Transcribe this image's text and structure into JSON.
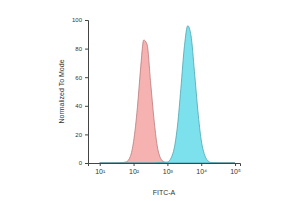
{
  "chart_data": {
    "type": "area",
    "xlabel": "FITC-A",
    "ylabel": "Normalized To Mode",
    "log": "x",
    "x": [
      10,
      20,
      40,
      60,
      80,
      100,
      130,
      160,
      200,
      250,
      320,
      400,
      500,
      630,
      800,
      1000,
      1300,
      1600,
      2000,
      2500,
      3200,
      4000,
      5000,
      6300,
      8000,
      10000,
      13000,
      16000,
      20000,
      40000,
      100000
    ],
    "series": [
      {
        "color": "#f4a3a3",
        "values": [
          0,
          0,
          0.2,
          0.7,
          4.5,
          15,
          39,
          65,
          86,
          83,
          56,
          31,
          12,
          3.3,
          0.7,
          0.1,
          0,
          0,
          0,
          0,
          0,
          0,
          0,
          0,
          0,
          0,
          0,
          0,
          0,
          0,
          0
        ]
      },
      {
        "color": "#66dcea",
        "values": [
          0,
          0,
          0,
          0,
          0,
          0,
          0,
          0,
          0,
          0,
          0,
          0,
          0.3,
          0.4,
          0.5,
          0.7,
          3.7,
          10.6,
          26.6,
          52,
          82,
          96,
          89,
          64,
          36,
          16,
          4.8,
          1.4,
          0.3,
          0,
          0
        ]
      }
    ],
    "xlim": [
      4.5,
      140000
    ],
    "xticks": [
      {
        "value": 10,
        "label": "10¹"
      },
      {
        "value": 100,
        "label": "10²"
      },
      {
        "value": 1000,
        "label": "10³"
      },
      {
        "value": 10000,
        "label": "10⁴"
      },
      {
        "value": 100000,
        "label": "10⁵"
      }
    ],
    "ylim": [
      0,
      100
    ],
    "yticks": [
      0,
      20,
      40,
      60,
      80,
      100
    ]
  }
}
